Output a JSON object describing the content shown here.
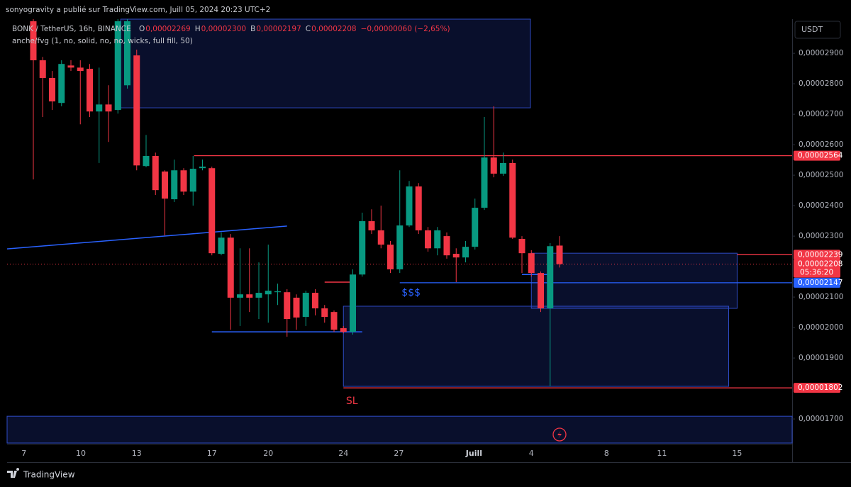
{
  "header": {
    "publisher": "sonyogravity a publié sur TradingView.com, Juill 05, 2024 20:23 UTC+2",
    "symbol": "BONK / TetherUS, 16h, BINANCE",
    "ohlc": [
      {
        "key": "O",
        "value": "0,00002269"
      },
      {
        "key": "H",
        "value": "0,00002300"
      },
      {
        "key": "B",
        "value": "0,00002197"
      },
      {
        "key": "C",
        "value": "0,00002208"
      }
    ],
    "change": "−0,00000060 (−2,65%)",
    "indicator": "anche/fvg (1, no, solid, no, no, wicks, full fill, 50)",
    "currency": "USDT"
  },
  "chart_data": {
    "type": "candlestick",
    "up_color": "#089981",
    "down_color": "#f23645",
    "ylim": [
      1.621e-05,
      3.012e-05
    ],
    "yticks": [
      {
        "value": 2.9e-05,
        "label": "0,00002900"
      },
      {
        "value": 2.8e-05,
        "label": "0,00002800"
      },
      {
        "value": 2.7e-05,
        "label": "0,00002700"
      },
      {
        "value": 2.6e-05,
        "label": "0,00002600"
      },
      {
        "value": 2.5e-05,
        "label": "0,00002500"
      },
      {
        "value": 2.4e-05,
        "label": "0,00002400"
      },
      {
        "value": 2.3e-05,
        "label": "0,00002300"
      },
      {
        "value": 2.1e-05,
        "label": "0,00002100"
      },
      {
        "value": 2e-05,
        "label": "0,00002000"
      },
      {
        "value": 1.9e-05,
        "label": "0,00001900"
      },
      {
        "value": 1.7e-05,
        "label": "0,00001700"
      }
    ],
    "xticks": [
      {
        "value": -1,
        "label": "7"
      },
      {
        "value": 5.06,
        "label": "10"
      },
      {
        "value": 11,
        "label": "13"
      },
      {
        "value": 19,
        "label": "17"
      },
      {
        "value": 25,
        "label": "20"
      },
      {
        "value": 33,
        "label": "24"
      },
      {
        "value": 38.9,
        "label": "27"
      },
      {
        "value": 46.9,
        "label": "Juill"
      },
      {
        "value": 53,
        "label": "4"
      },
      {
        "value": 61,
        "label": "8"
      },
      {
        "value": 66.9,
        "label": "11"
      },
      {
        "value": 74.9,
        "label": "15"
      }
    ],
    "candles": [
      [
        3.005e-05,
        3.012e-05,
        2.486e-05,
        2.877e-05
      ],
      [
        2.877e-05,
        2.888e-05,
        2.691e-05,
        2.819e-05
      ],
      [
        2.819e-05,
        2.842e-05,
        2.714e-05,
        2.742e-05
      ],
      [
        2.737e-05,
        2.877e-05,
        2.726e-05,
        2.865e-05
      ],
      [
        2.86e-05,
        2.877e-05,
        2.842e-05,
        2.853e-05
      ],
      [
        2.853e-05,
        2.877e-05,
        2.667e-05,
        2.842e-05
      ],
      [
        2.849e-05,
        2.865e-05,
        2.691e-05,
        2.709e-05
      ],
      [
        2.709e-05,
        2.853e-05,
        2.54e-05,
        2.732e-05
      ],
      [
        2.732e-05,
        2.795e-05,
        2.609e-05,
        2.709e-05
      ],
      [
        2.714e-05,
        3.012e-05,
        2.702e-05,
        3.005e-05
      ],
      [
        2.795e-05,
        3.012e-05,
        2.784e-05,
        3.005e-05
      ],
      [
        2.893e-05,
        2.912e-05,
        2.516e-05,
        2.532e-05
      ],
      [
        2.53e-05,
        2.632e-05,
        2.526e-05,
        2.563e-05
      ],
      [
        2.563e-05,
        2.574e-05,
        2.435e-05,
        2.451e-05
      ],
      [
        2.512e-05,
        2.516e-05,
        2.302e-05,
        2.423e-05
      ],
      [
        2.421e-05,
        2.551e-05,
        2.412e-05,
        2.516e-05
      ],
      [
        2.516e-05,
        2.523e-05,
        2.435e-05,
        2.446e-05
      ],
      [
        2.446e-05,
        2.563e-05,
        2.4e-05,
        2.521e-05
      ],
      [
        2.523e-05,
        2.551e-05,
        2.516e-05,
        2.528e-05
      ],
      [
        2.523e-05,
        2.528e-05,
        2.237e-05,
        2.244e-05
      ],
      [
        2.242e-05,
        2.312e-05,
        2.237e-05,
        2.295e-05
      ],
      [
        2.295e-05,
        2.307e-05,
        1.993e-05,
        2.098e-05
      ],
      [
        2.098e-05,
        2.26e-05,
        2.005e-05,
        2.109e-05
      ],
      [
        2.109e-05,
        2.26e-05,
        2.051e-05,
        2.098e-05
      ],
      [
        2.098e-05,
        2.214e-05,
        2.028e-05,
        2.114e-05
      ],
      [
        2.109e-05,
        2.272e-05,
        2.016e-05,
        2.121e-05
      ],
      [
        2.116e-05,
        2.144e-05,
        2.074e-05,
        2.119e-05
      ],
      [
        2.116e-05,
        2.126e-05,
        1.97e-05,
        2.028e-05
      ],
      [
        2.098e-05,
        2.109e-05,
        1.993e-05,
        2.033e-05
      ],
      [
        2.035e-05,
        2.121e-05,
        2.005e-05,
        2.114e-05
      ],
      [
        2.114e-05,
        2.126e-05,
        2.04e-05,
        2.063e-05
      ],
      [
        2.063e-05,
        2.074e-05,
        2.016e-05,
        2.035e-05
      ],
      [
        2.051e-05,
        2.056e-05,
        1.986e-05,
        1.993e-05
      ],
      [
        1.998e-05,
        2.005e-05,
        1.981e-05,
        1.986e-05
      ],
      [
        1.986e-05,
        2.191e-05,
        1.977e-05,
        2.174e-05
      ],
      [
        2.174e-05,
        2.377e-05,
        2.167e-05,
        2.349e-05
      ],
      [
        2.349e-05,
        2.388e-05,
        2.307e-05,
        2.319e-05
      ],
      [
        2.319e-05,
        2.4e-05,
        2.26e-05,
        2.272e-05
      ],
      [
        2.272e-05,
        2.284e-05,
        2.179e-05,
        2.191e-05
      ],
      [
        2.191e-05,
        2.516e-05,
        2.179e-05,
        2.335e-05
      ],
      [
        2.335e-05,
        2.481e-05,
        2.33e-05,
        2.463e-05
      ],
      [
        2.463e-05,
        2.474e-05,
        2.307e-05,
        2.319e-05
      ],
      [
        2.319e-05,
        2.33e-05,
        2.249e-05,
        2.26e-05
      ],
      [
        2.26e-05,
        2.33e-05,
        2.237e-05,
        2.319e-05
      ],
      [
        2.3e-05,
        2.312e-05,
        2.226e-05,
        2.237e-05
      ],
      [
        2.242e-05,
        2.26e-05,
        2.149e-05,
        2.23e-05
      ],
      [
        2.23e-05,
        2.284e-05,
        2.214e-05,
        2.265e-05
      ],
      [
        2.265e-05,
        2.423e-05,
        2.256e-05,
        2.393e-05
      ],
      [
        2.393e-05,
        2.691e-05,
        2.386e-05,
        2.558e-05
      ],
      [
        2.558e-05,
        2.726e-05,
        2.493e-05,
        2.505e-05
      ],
      [
        2.505e-05,
        2.574e-05,
        2.498e-05,
        2.54e-05
      ],
      [
        2.54e-05,
        2.551e-05,
        2.291e-05,
        2.295e-05
      ],
      [
        2.291e-05,
        2.3e-05,
        2.179e-05,
        2.244e-05
      ],
      [
        2.244e-05,
        2.254e-05,
        2.167e-05,
        2.179e-05
      ],
      [
        2.179e-05,
        2.184e-05,
        2.051e-05,
        2.063e-05
      ],
      [
        2.063e-05,
        2.277e-05,
        1.807e-05,
        2.267e-05
      ],
      [
        2.269e-05,
        2.3e-05,
        2.197e-05,
        2.208e-05
      ]
    ],
    "zones": [
      {
        "from": 9.3,
        "to": 52.9,
        "top": 3.012e-05,
        "bottom": 2.721e-05
      },
      {
        "from": 33,
        "to": 74,
        "top": 2.07e-05,
        "bottom": 1.807e-05
      },
      {
        "from": 53,
        "to": 74.9,
        "top": 2.244e-05,
        "bottom": 2.063e-05
      },
      {
        "from": -2.8,
        "to": 80.8,
        "top": 1.709e-05,
        "bottom": 1.621e-05
      }
    ],
    "lines": [
      {
        "from": -2.8,
        "to": 27,
        "y1": 2.258e-05,
        "y2": 2.333e-05,
        "color": "#2962ff"
      },
      {
        "from": 19,
        "to": 35,
        "y1": 1.986e-05,
        "y2": 1.986e-05,
        "color": "#2962ff"
      },
      {
        "from": 31,
        "to": 34,
        "y1": 2.149e-05,
        "y2": 2.149e-05,
        "color": "#f23645"
      },
      {
        "from": 52,
        "to": 55,
        "y1": 2.174e-05,
        "y2": 2.174e-05,
        "color": "#2962ff"
      }
    ],
    "levels": [
      {
        "value": 2.564e-05,
        "label": "0,00002564",
        "color": "#f23645",
        "from": 17.1
      },
      {
        "value": 2.239e-05,
        "label": "0,00002239",
        "color": "#f23645",
        "from": 74.9
      },
      {
        "value": 2.208e-05,
        "label": "0,00002208",
        "color": "#f23645",
        "from": -2.8,
        "dotted": true,
        "countdown": "05:36:20"
      },
      {
        "value": 2.147e-05,
        "label": "0,00002147",
        "color": "#2962ff",
        "from": 39
      },
      {
        "value": 1.802e-05,
        "label": "0,00001802",
        "color": "#f23645",
        "from": 33
      }
    ],
    "annotations": [
      {
        "text": "SL",
        "x": 33.9,
        "y": 1.758e-05,
        "color": "#f23645"
      },
      {
        "text": "$$$",
        "x": 40.2,
        "y": 2.114e-05,
        "color": "#2962ff"
      }
    ]
  }
}
